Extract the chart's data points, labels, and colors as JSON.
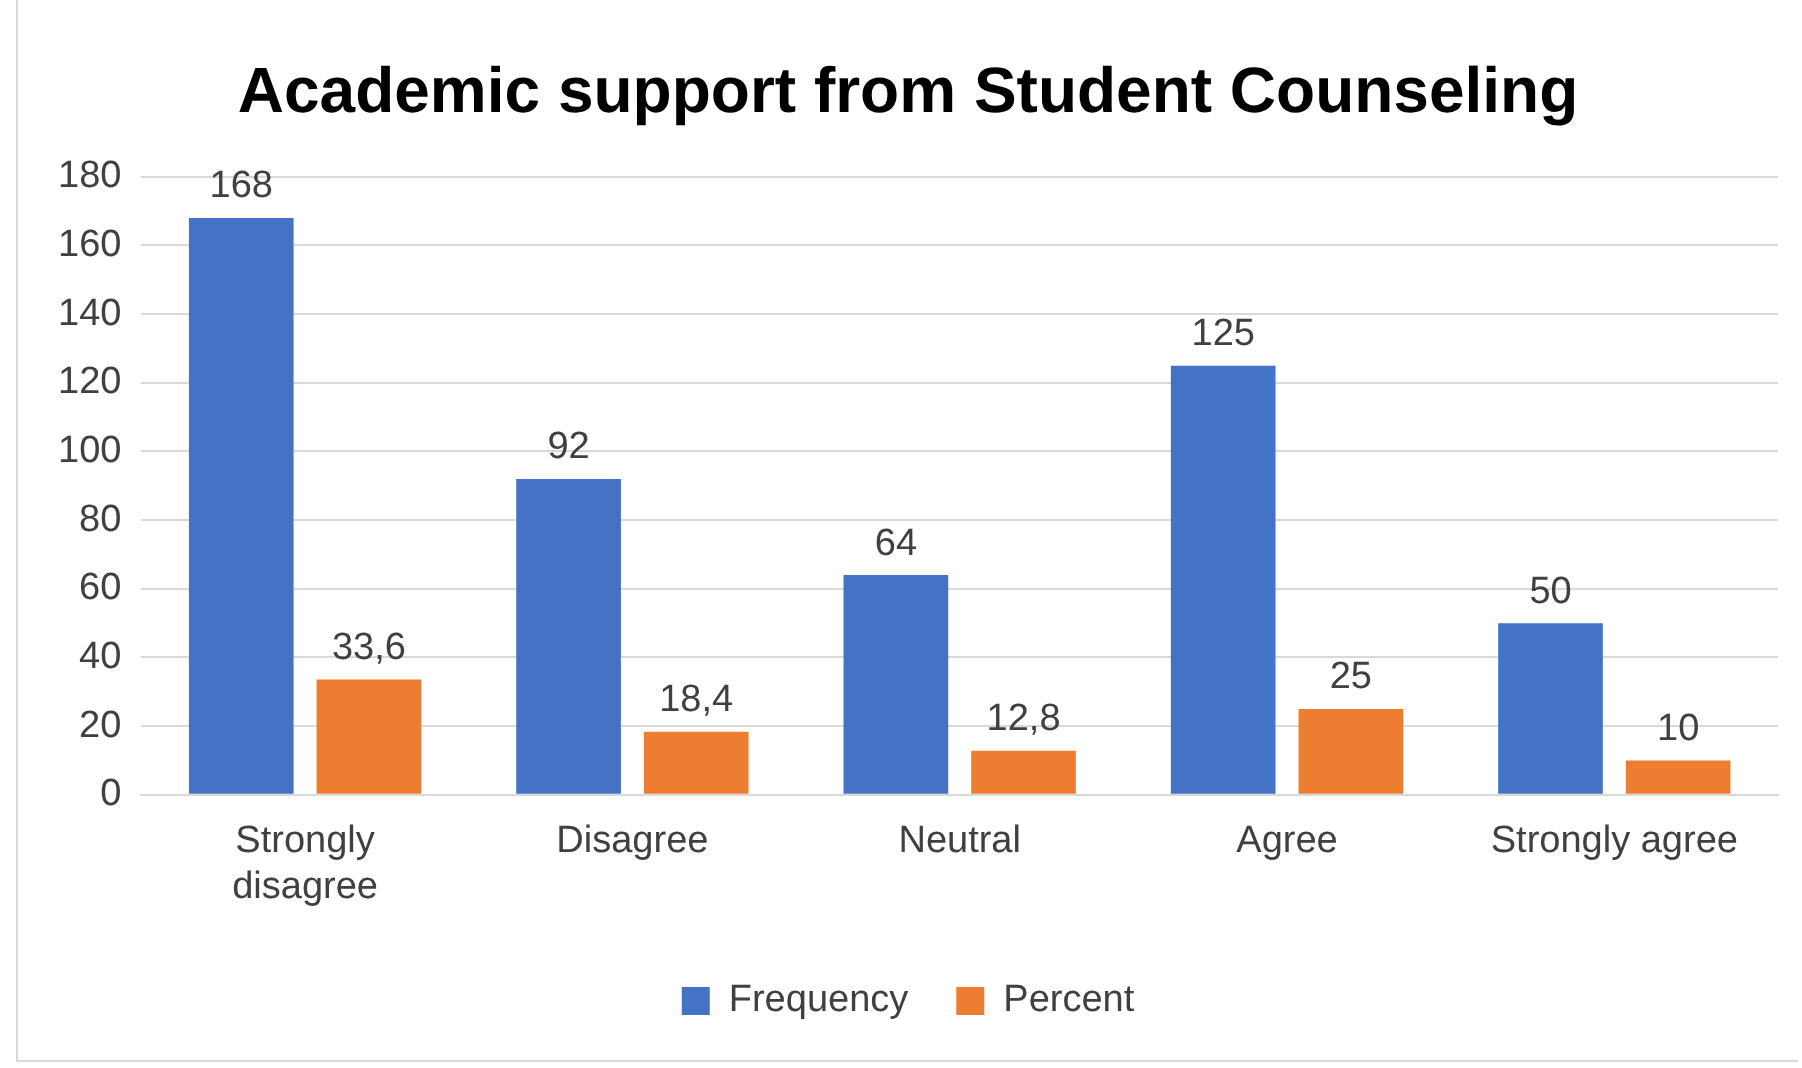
{
  "chart_data": {
    "type": "bar",
    "title": "Academic support from Student Counseling",
    "categories": [
      "Strongly disagree",
      "Disagree",
      "Neutral",
      "Agree",
      "Strongly agree"
    ],
    "series": [
      {
        "name": "Frequency",
        "color": "#4472c4",
        "values": [
          168,
          92,
          64,
          125,
          50
        ],
        "value_labels": [
          "168",
          "92",
          "64",
          "125",
          "50"
        ]
      },
      {
        "name": "Percent",
        "color": "#ed7d31",
        "values": [
          33.6,
          18.4,
          12.8,
          25,
          10
        ],
        "value_labels": [
          "33,6",
          "18,4",
          "12,8",
          "25",
          "10"
        ]
      }
    ],
    "ylim": [
      0,
      180
    ],
    "yticks": [
      0,
      20,
      40,
      60,
      80,
      100,
      120,
      140,
      160,
      180
    ],
    "grid": "y",
    "legend": "bottom"
  }
}
